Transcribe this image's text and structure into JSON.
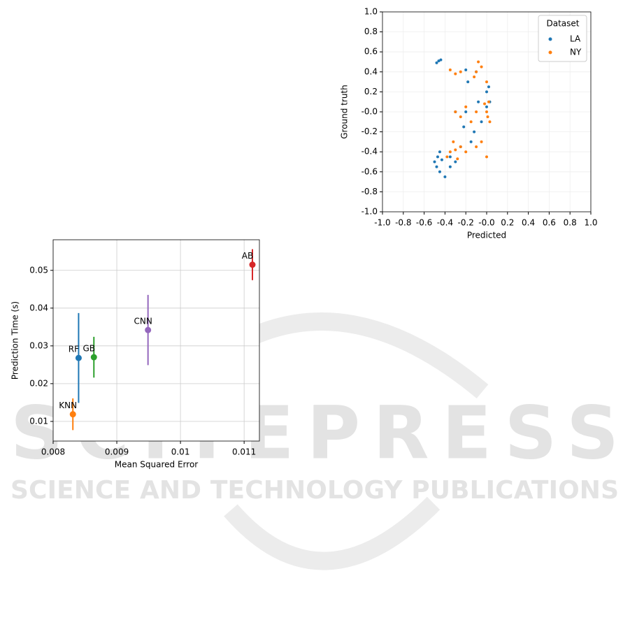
{
  "watermark": {
    "title": "SCITEPRESS",
    "subtitle": "SCIENCE AND TECHNOLOGY PUBLICATIONS"
  },
  "chart_data": [
    {
      "type": "scatter",
      "xlabel": "Predicted",
      "ylabel": "Ground truth",
      "xlim": [
        -1,
        1
      ],
      "ylim": [
        -1,
        1
      ],
      "grid": true,
      "legend_title": "Dataset",
      "legend": "upper right",
      "xticks": [
        {
          "value": -1,
          "label": "-1.0"
        },
        {
          "value": -0.8,
          "label": "-0.8"
        },
        {
          "value": -0.6,
          "label": "-0.6"
        },
        {
          "value": -0.4,
          "label": "-0.4"
        },
        {
          "value": -0.2,
          "label": "-0.2"
        },
        {
          "value": 0,
          "label": "-0.0"
        },
        {
          "value": 0.2,
          "label": "0.2"
        },
        {
          "value": 0.4,
          "label": "0.4"
        },
        {
          "value": 0.6,
          "label": "0.6"
        },
        {
          "value": 0.8,
          "label": "0.8"
        },
        {
          "value": 1,
          "label": "1.0"
        }
      ],
      "yticks": [
        {
          "value": -1,
          "label": "-1.0"
        },
        {
          "value": -0.8,
          "label": "-0.8"
        },
        {
          "value": -0.6,
          "label": "-0.6"
        },
        {
          "value": -0.4,
          "label": "-0.4"
        },
        {
          "value": -0.2,
          "label": "-0.2"
        },
        {
          "value": 0,
          "label": "-0.0"
        },
        {
          "value": 0.2,
          "label": "0.2"
        },
        {
          "value": 0.4,
          "label": "0.4"
        },
        {
          "value": 0.6,
          "label": "0.6"
        },
        {
          "value": 0.8,
          "label": "0.8"
        },
        {
          "value": 1,
          "label": "1.0"
        }
      ],
      "series": [
        {
          "name": "LA",
          "color": "#1f77b4",
          "x": [
            -0.46,
            -0.48,
            -0.44,
            -0.47,
            -0.5,
            -0.45,
            -0.48,
            -0.43,
            -0.2,
            -0.18,
            -0.15,
            -0.2,
            -0.1,
            -0.08,
            -0.05,
            0.0,
            0.02,
            -0.3,
            -0.35,
            -0.45,
            -0.12,
            -0.22,
            -0.3,
            -0.35,
            0.0,
            -0.4,
            0.03,
            -0.25
          ],
          "values": [
            0.51,
            0.49,
            0.52,
            -0.45,
            -0.5,
            -0.4,
            -0.55,
            -0.48,
            0.42,
            0.3,
            -0.3,
            0.0,
            0.4,
            0.1,
            -0.1,
            0.2,
            0.25,
            -0.5,
            -0.55,
            -0.6,
            -0.2,
            -0.15,
            0.0,
            -0.45,
            0.05,
            -0.65,
            0.1,
            -0.35
          ]
        },
        {
          "name": "NY",
          "color": "#ff7f0e",
          "x": [
            -0.35,
            -0.3,
            -0.25,
            -0.12,
            -0.1,
            -0.05,
            -0.08,
            0.0,
            0.02,
            0.0,
            0.01,
            -0.02,
            0.03,
            -0.1,
            -0.3,
            -0.25,
            -0.2,
            -0.35,
            -0.3,
            -0.38,
            -0.32,
            -0.25,
            -0.2,
            -0.1,
            -0.05,
            0.0,
            -0.15,
            -0.28
          ],
          "values": [
            0.42,
            0.38,
            0.4,
            0.35,
            0.4,
            0.45,
            0.5,
            0.3,
            0.1,
            0.0,
            -0.05,
            0.08,
            -0.1,
            0.0,
            0.0,
            -0.05,
            0.05,
            -0.4,
            -0.38,
            -0.45,
            -0.3,
            -0.35,
            -0.4,
            -0.35,
            -0.3,
            -0.45,
            -0.1,
            -0.47
          ]
        }
      ]
    },
    {
      "type": "errorbar",
      "xlabel": "Mean Squared Error",
      "ylabel": "Prediction Time (s)",
      "xlim": [
        0.008,
        0.01124
      ],
      "ylim": [
        0.0048,
        0.0581
      ],
      "grid": true,
      "xticks": [
        0.008,
        0.009,
        0.01,
        0.011
      ],
      "yticks": [
        0.01,
        0.02,
        0.03,
        0.04,
        0.05
      ],
      "series": [
        {
          "name": "KNN",
          "color": "#ff7f0e",
          "x": [
            0.00831
          ],
          "values": [
            0.0119
          ],
          "errors": [
            0.0042
          ]
        },
        {
          "name": "RF",
          "color": "#1f77b4",
          "x": [
            0.0084
          ],
          "values": [
            0.0268
          ],
          "errors": [
            0.0119
          ]
        },
        {
          "name": "GB",
          "color": "#2ca02c",
          "x": [
            0.00864
          ],
          "values": [
            0.027
          ],
          "errors": [
            0.0054
          ]
        },
        {
          "name": "CNN",
          "color": "#9467bd",
          "x": [
            0.00949
          ],
          "values": [
            0.0342
          ],
          "errors": [
            0.0093
          ]
        },
        {
          "name": "AB",
          "color": "#d62728",
          "x": [
            0.01113
          ],
          "values": [
            0.0515
          ],
          "errors": [
            0.0041
          ]
        }
      ]
    }
  ]
}
